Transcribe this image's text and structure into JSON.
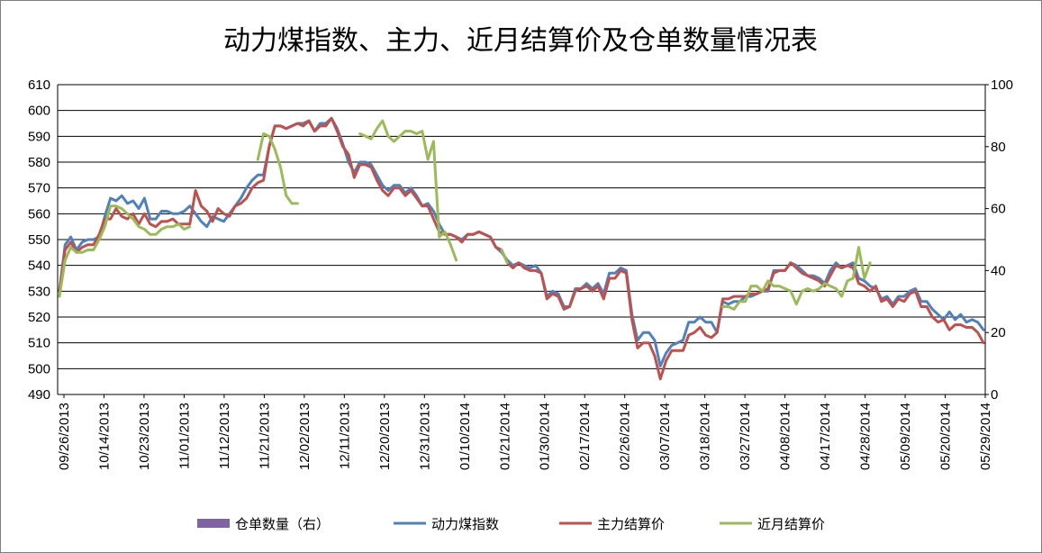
{
  "chart_data": {
    "type": "line",
    "title": "动力煤指数、主力、近月结算价及仓单数量情况表",
    "xlabel": "",
    "ylabel": "",
    "y_left": {
      "min": 490,
      "max": 610,
      "step": 10
    },
    "y_right": {
      "min": 0,
      "max": 100,
      "step": 20
    },
    "grid": "horizontal",
    "legend_position": "bottom",
    "x_tick_labels": [
      "09/26/2013",
      "10/14/2013",
      "10/23/2013",
      "11/01/2013",
      "11/12/2013",
      "11/21/2013",
      "12/02/2013",
      "12/11/2013",
      "12/20/2013",
      "12/31/2013",
      "01/10/2014",
      "01/21/2014",
      "01/30/2014",
      "02/17/2014",
      "02/26/2014",
      "03/07/2014",
      "03/18/2014",
      "03/27/2014",
      "04/08/2014",
      "04/17/2014",
      "04/28/2014",
      "05/09/2014",
      "05/20/2014",
      "05/29/2014"
    ],
    "colors": {
      "warehouse": "#8064a2",
      "index": "#4f81bd",
      "main": "#c0504d",
      "near": "#9bbb59",
      "grid": "#000000"
    },
    "series": [
      {
        "name": "仓单数量（右）",
        "key": "warehouse",
        "axis": "right",
        "values": []
      },
      {
        "name": "动力煤指数",
        "key": "index",
        "axis": "left",
        "values": [
          530,
          548,
          551,
          546,
          549,
          550,
          550,
          551,
          559,
          566,
          565,
          567,
          564,
          565,
          562,
          566,
          558,
          558,
          561,
          561,
          560,
          560,
          561,
          563,
          560,
          557,
          555,
          559,
          558,
          557,
          560,
          563,
          566,
          570,
          573,
          575,
          575,
          586,
          594,
          594,
          593,
          594,
          595,
          595,
          596,
          592,
          595,
          595,
          597,
          593,
          587,
          580,
          576,
          580,
          580,
          579,
          575,
          571,
          569,
          571,
          571,
          568,
          570,
          567,
          563,
          564,
          561,
          556,
          552,
          552,
          551,
          550,
          552,
          552,
          553,
          552,
          551,
          547,
          545,
          542,
          540,
          541,
          540,
          539,
          540,
          537,
          528,
          530,
          529,
          524,
          524,
          531,
          531,
          533,
          531,
          533,
          529,
          537,
          537,
          539,
          538,
          521,
          511,
          514,
          514,
          511,
          501,
          506,
          509,
          510,
          511,
          518,
          518,
          520,
          518,
          518,
          514,
          526,
          525,
          526,
          526,
          528,
          528,
          529,
          530,
          530,
          538,
          538,
          538,
          541,
          540,
          538,
          536,
          536,
          535,
          533,
          538,
          541,
          539,
          540,
          541,
          535,
          534,
          532,
          531,
          527,
          528,
          525,
          528,
          528,
          530,
          531,
          526,
          526,
          523,
          521,
          519,
          522,
          519,
          521,
          518,
          519,
          518,
          515
        ]
      },
      {
        "name": "主力结算价",
        "key": "main",
        "axis": "left",
        "values": [
          530,
          546,
          549,
          545,
          547,
          548,
          548,
          552,
          558,
          558,
          562,
          559,
          558,
          560,
          556,
          560,
          556,
          555,
          557,
          557,
          558,
          556,
          556,
          556,
          569,
          563,
          561,
          557,
          562,
          560,
          559,
          563,
          564,
          566,
          570,
          572,
          573,
          586,
          594,
          594,
          593,
          594,
          595,
          594,
          596,
          592,
          594,
          594,
          597,
          592,
          586,
          583,
          574,
          579,
          579,
          578,
          573,
          569,
          567,
          570,
          570,
          567,
          569,
          566,
          563,
          563,
          558,
          553,
          552,
          552,
          551,
          549,
          552,
          552,
          553,
          552,
          551,
          547,
          546,
          541,
          539,
          541,
          539,
          538,
          538,
          537,
          527,
          529,
          528,
          523,
          524,
          530,
          531,
          532,
          530,
          532,
          527,
          535,
          535,
          538,
          537,
          519,
          508,
          510,
          510,
          505,
          496,
          503,
          507,
          507,
          507,
          513,
          514,
          516,
          513,
          512,
          514,
          527,
          527,
          528,
          528,
          528,
          529,
          529,
          530,
          531,
          537,
          538,
          538,
          541,
          539,
          537,
          536,
          535,
          534,
          532,
          536,
          540,
          539,
          540,
          539,
          533,
          532,
          530,
          532,
          526,
          527,
          524,
          527,
          526,
          529,
          530,
          524,
          524,
          520,
          518,
          519,
          515,
          517,
          517,
          516,
          516,
          514,
          510
        ]
      },
      {
        "name": "近月结算价",
        "key": "near",
        "axis": "left",
        "values": [
          528,
          542,
          547,
          545,
          545,
          546,
          546,
          550,
          555,
          563,
          563,
          562,
          560,
          558,
          555,
          554,
          552,
          552,
          554,
          555,
          555,
          556,
          554,
          555,
          null,
          null,
          null,
          null,
          null,
          null,
          null,
          null,
          null,
          null,
          null,
          581,
          591,
          590,
          585,
          578,
          567,
          564,
          564,
          null,
          null,
          null,
          null,
          null,
          null,
          null,
          null,
          null,
          null,
          591,
          590,
          589,
          593,
          596,
          590,
          588,
          590,
          592,
          592,
          591,
          592,
          581,
          588,
          551,
          553,
          548,
          542,
          null,
          null,
          null,
          null,
          null,
          null,
          null,
          546,
          541,
          null,
          null,
          null,
          null,
          null,
          null,
          null,
          null,
          null,
          null,
          null,
          null,
          null,
          null,
          null,
          null,
          null,
          null,
          null,
          null,
          null,
          null,
          null,
          null,
          null,
          null,
          null,
          null,
          null,
          null,
          null,
          null,
          null,
          null,
          null,
          null,
          null,
          524,
          524,
          523,
          526,
          526,
          532,
          532,
          530,
          534,
          532,
          532,
          531,
          530,
          525,
          530,
          531,
          530,
          531,
          533,
          532,
          531,
          528,
          534,
          535,
          547,
          535,
          541,
          null,
          null,
          null,
          null,
          null,
          null,
          null,
          null,
          null,
          null,
          null,
          null,
          null,
          null,
          null,
          null,
          null,
          null,
          null
        ]
      }
    ]
  }
}
